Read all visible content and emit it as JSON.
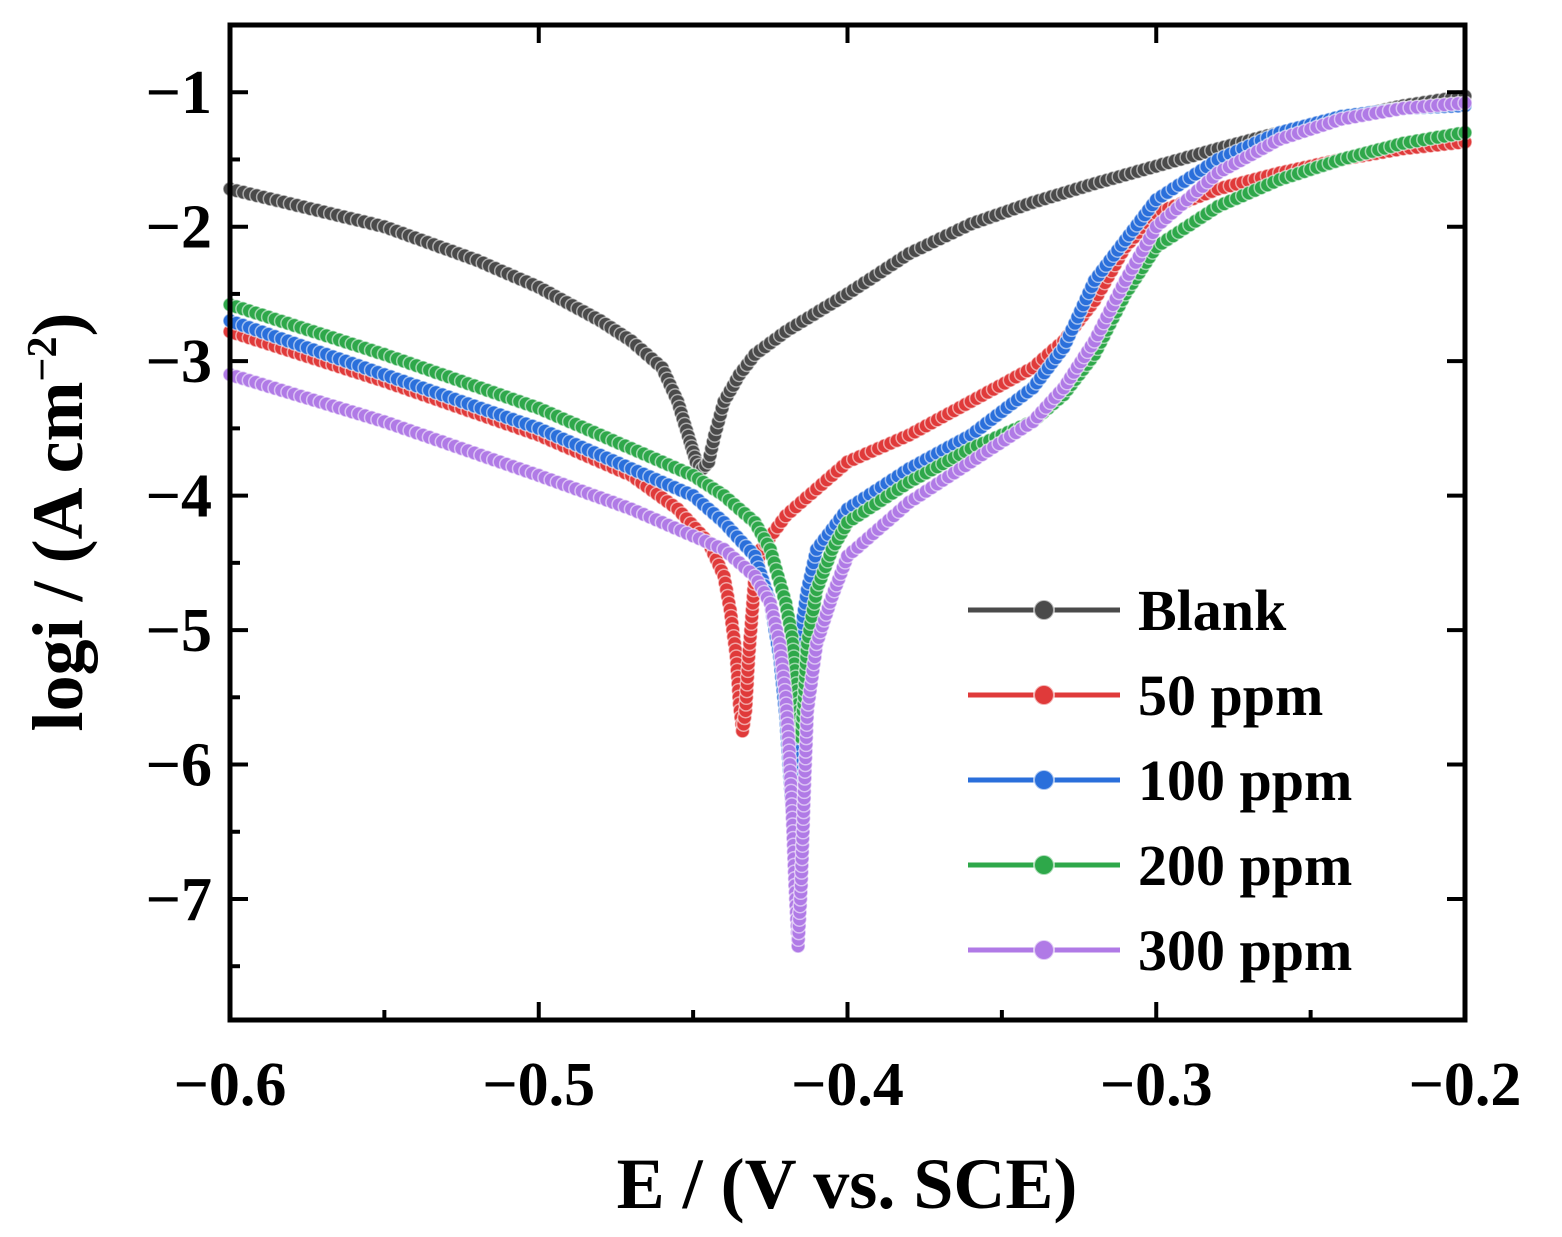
{
  "chart_data": {
    "type": "line",
    "title": "",
    "xlabel": "E / (V vs. SCE)",
    "ylabel_parts": {
      "main": "logi / (A cm",
      "sup": "−2",
      "close": ")"
    },
    "xlim": [
      -0.6,
      -0.2
    ],
    "ylim": [
      -7.9,
      -0.5
    ],
    "x_ticks": [
      -0.6,
      -0.5,
      -0.4,
      -0.3,
      -0.2
    ],
    "x_tick_labels": [
      "−0.6",
      "−0.5",
      "−0.4",
      "−0.3",
      "−0.2"
    ],
    "x_minor_ticks": [
      -0.55,
      -0.45,
      -0.35,
      -0.25
    ],
    "y_ticks": [
      -1,
      -2,
      -3,
      -4,
      -5,
      -6,
      -7
    ],
    "y_tick_labels": [
      "−1",
      "−2",
      "−3",
      "−4",
      "−5",
      "−6",
      "−7"
    ],
    "y_minor_ticks": [
      -0.5,
      -1.5,
      -2.5,
      -3.5,
      -4.5,
      -5.5,
      -6.5,
      -7.5
    ],
    "grid": false,
    "legend_position": "bottom-right",
    "series": [
      {
        "name": "Blank",
        "color": "#4a4a4a",
        "points": [
          [
            -0.6,
            -1.72
          ],
          [
            -0.55,
            -2.0
          ],
          [
            -0.52,
            -2.25
          ],
          [
            -0.5,
            -2.45
          ],
          [
            -0.48,
            -2.7
          ],
          [
            -0.47,
            -2.85
          ],
          [
            -0.46,
            -3.05
          ],
          [
            -0.455,
            -3.3
          ],
          [
            -0.451,
            -3.6
          ],
          [
            -0.449,
            -3.75
          ],
          [
            -0.447,
            -3.8
          ],
          [
            -0.445,
            -3.75
          ],
          [
            -0.443,
            -3.55
          ],
          [
            -0.44,
            -3.3
          ],
          [
            -0.435,
            -3.1
          ],
          [
            -0.43,
            -2.95
          ],
          [
            -0.42,
            -2.78
          ],
          [
            -0.4,
            -2.5
          ],
          [
            -0.38,
            -2.2
          ],
          [
            -0.36,
            -1.98
          ],
          [
            -0.34,
            -1.82
          ],
          [
            -0.32,
            -1.68
          ],
          [
            -0.3,
            -1.55
          ],
          [
            -0.28,
            -1.42
          ],
          [
            -0.26,
            -1.3
          ],
          [
            -0.24,
            -1.2
          ],
          [
            -0.22,
            -1.1
          ],
          [
            -0.2,
            -1.03
          ]
        ]
      },
      {
        "name": "50 ppm",
        "color": "#e03a3a",
        "points": [
          [
            -0.6,
            -2.78
          ],
          [
            -0.55,
            -3.15
          ],
          [
            -0.5,
            -3.55
          ],
          [
            -0.47,
            -3.85
          ],
          [
            -0.455,
            -4.1
          ],
          [
            -0.445,
            -4.35
          ],
          [
            -0.44,
            -4.6
          ],
          [
            -0.438,
            -4.85
          ],
          [
            -0.436,
            -5.2
          ],
          [
            -0.435,
            -5.55
          ],
          [
            -0.434,
            -5.75
          ],
          [
            -0.433,
            -5.6
          ],
          [
            -0.432,
            -5.2
          ],
          [
            -0.431,
            -4.9
          ],
          [
            -0.43,
            -4.6
          ],
          [
            -0.428,
            -4.4
          ],
          [
            -0.42,
            -4.15
          ],
          [
            -0.41,
            -3.95
          ],
          [
            -0.4,
            -3.75
          ],
          [
            -0.38,
            -3.55
          ],
          [
            -0.36,
            -3.3
          ],
          [
            -0.34,
            -3.05
          ],
          [
            -0.33,
            -2.85
          ],
          [
            -0.32,
            -2.55
          ],
          [
            -0.31,
            -2.15
          ],
          [
            -0.3,
            -1.9
          ],
          [
            -0.28,
            -1.72
          ],
          [
            -0.26,
            -1.6
          ],
          [
            -0.24,
            -1.5
          ],
          [
            -0.22,
            -1.42
          ],
          [
            -0.2,
            -1.37
          ]
        ]
      },
      {
        "name": "100 ppm",
        "color": "#2a6fdb",
        "points": [
          [
            -0.6,
            -2.7
          ],
          [
            -0.55,
            -3.1
          ],
          [
            -0.5,
            -3.5
          ],
          [
            -0.47,
            -3.8
          ],
          [
            -0.45,
            -4.0
          ],
          [
            -0.44,
            -4.2
          ],
          [
            -0.43,
            -4.45
          ],
          [
            -0.425,
            -4.8
          ],
          [
            -0.422,
            -5.2
          ],
          [
            -0.42,
            -5.65
          ],
          [
            -0.419,
            -6.0
          ],
          [
            -0.418,
            -6.32
          ],
          [
            -0.417,
            -6.0
          ],
          [
            -0.416,
            -5.5
          ],
          [
            -0.415,
            -5.0
          ],
          [
            -0.413,
            -4.7
          ],
          [
            -0.41,
            -4.4
          ],
          [
            -0.4,
            -4.1
          ],
          [
            -0.38,
            -3.8
          ],
          [
            -0.36,
            -3.55
          ],
          [
            -0.34,
            -3.2
          ],
          [
            -0.33,
            -2.9
          ],
          [
            -0.32,
            -2.4
          ],
          [
            -0.31,
            -2.1
          ],
          [
            -0.3,
            -1.8
          ],
          [
            -0.28,
            -1.5
          ],
          [
            -0.26,
            -1.3
          ],
          [
            -0.24,
            -1.18
          ],
          [
            -0.22,
            -1.12
          ],
          [
            -0.2,
            -1.1
          ]
        ]
      },
      {
        "name": "200 ppm",
        "color": "#2ea84a",
        "points": [
          [
            -0.6,
            -2.58
          ],
          [
            -0.55,
            -2.95
          ],
          [
            -0.5,
            -3.35
          ],
          [
            -0.47,
            -3.65
          ],
          [
            -0.45,
            -3.85
          ],
          [
            -0.44,
            -4.0
          ],
          [
            -0.43,
            -4.2
          ],
          [
            -0.425,
            -4.4
          ],
          [
            -0.42,
            -4.8
          ],
          [
            -0.418,
            -5.05
          ],
          [
            -0.417,
            -5.3
          ],
          [
            -0.416,
            -5.5
          ],
          [
            -0.415,
            -5.8
          ],
          [
            -0.414,
            -5.5
          ],
          [
            -0.413,
            -5.1
          ],
          [
            -0.41,
            -4.7
          ],
          [
            -0.405,
            -4.4
          ],
          [
            -0.4,
            -4.2
          ],
          [
            -0.38,
            -3.9
          ],
          [
            -0.36,
            -3.65
          ],
          [
            -0.34,
            -3.45
          ],
          [
            -0.33,
            -3.25
          ],
          [
            -0.32,
            -2.95
          ],
          [
            -0.31,
            -2.5
          ],
          [
            -0.3,
            -2.15
          ],
          [
            -0.28,
            -1.85
          ],
          [
            -0.26,
            -1.65
          ],
          [
            -0.24,
            -1.5
          ],
          [
            -0.22,
            -1.38
          ],
          [
            -0.2,
            -1.3
          ]
        ]
      },
      {
        "name": "300 ppm",
        "color": "#b07ae6",
        "points": [
          [
            -0.6,
            -3.1
          ],
          [
            -0.55,
            -3.45
          ],
          [
            -0.5,
            -3.85
          ],
          [
            -0.47,
            -4.1
          ],
          [
            -0.45,
            -4.3
          ],
          [
            -0.44,
            -4.4
          ],
          [
            -0.43,
            -4.6
          ],
          [
            -0.425,
            -4.8
          ],
          [
            -0.422,
            -5.1
          ],
          [
            -0.42,
            -5.5
          ],
          [
            -0.419,
            -5.85
          ],
          [
            -0.418,
            -6.3
          ],
          [
            -0.417,
            -6.9
          ],
          [
            -0.416,
            -7.35
          ],
          [
            -0.415,
            -6.9
          ],
          [
            -0.414,
            -6.2
          ],
          [
            -0.413,
            -5.6
          ],
          [
            -0.41,
            -5.1
          ],
          [
            -0.405,
            -4.75
          ],
          [
            -0.4,
            -4.45
          ],
          [
            -0.38,
            -4.05
          ],
          [
            -0.36,
            -3.75
          ],
          [
            -0.34,
            -3.45
          ],
          [
            -0.33,
            -3.2
          ],
          [
            -0.32,
            -2.85
          ],
          [
            -0.31,
            -2.4
          ],
          [
            -0.3,
            -2.0
          ],
          [
            -0.28,
            -1.6
          ],
          [
            -0.26,
            -1.35
          ],
          [
            -0.24,
            -1.2
          ],
          [
            -0.22,
            -1.12
          ],
          [
            -0.2,
            -1.08
          ]
        ]
      }
    ]
  }
}
